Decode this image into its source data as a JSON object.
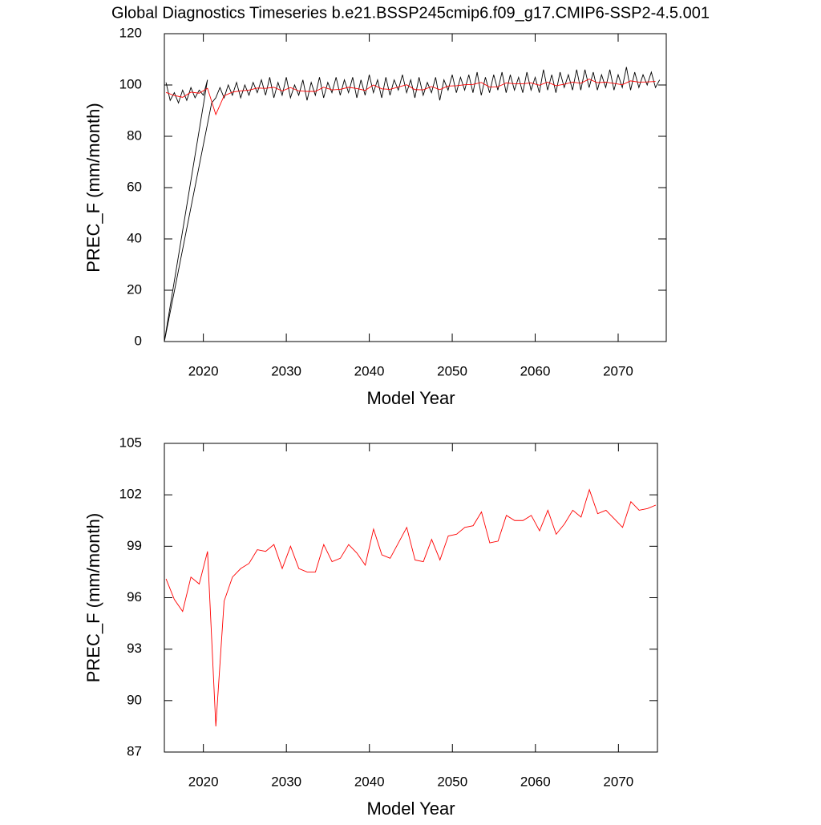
{
  "chart_data": [
    {
      "type": "line",
      "title": "Global Diagnostics Timeseries b.e21.BSSP245cmip6.f09_g17.CMIP6-SSP2-4.5.001",
      "x_label": "Model Year",
      "y_label": "PREC_F (mm/month)",
      "xlim": [
        2015.3,
        2075.8
      ],
      "ylim": [
        0,
        120
      ],
      "xticks": [
        2020,
        2030,
        2040,
        2050,
        2060,
        2070
      ],
      "yticks": [
        0,
        20,
        40,
        60,
        80,
        100,
        120
      ],
      "series": [
        {
          "color": "#000000",
          "x": [
            2015.5,
            2016,
            2016.5,
            2017,
            2017.5,
            2018,
            2018.5,
            2019,
            2019.5,
            2020,
            2020.5,
            2015.3,
            2021,
            2021.5,
            2022,
            2022.5,
            2023,
            2023.5,
            2024,
            2024.5,
            2025,
            2025.5,
            2026,
            2026.5,
            2027,
            2027.5,
            2028,
            2028.5,
            2029,
            2029.5,
            2030,
            2030.5,
            2031,
            2031.5,
            2032,
            2032.5,
            2033,
            2033.5,
            2034,
            2034.5,
            2035,
            2035.5,
            2036,
            2036.5,
            2037,
            2037.5,
            2038,
            2038.5,
            2039,
            2039.5,
            2040,
            2040.5,
            2041,
            2041.5,
            2042,
            2042.5,
            2043,
            2043.5,
            2044,
            2044.5,
            2045,
            2045.5,
            2046,
            2046.5,
            2047,
            2047.5,
            2048,
            2048.5,
            2049,
            2049.5,
            2050,
            2050.5,
            2051,
            2051.5,
            2052,
            2052.5,
            2053,
            2053.5,
            2054,
            2054.5,
            2055,
            2055.5,
            2056,
            2056.5,
            2057,
            2057.5,
            2058,
            2058.5,
            2059,
            2059.5,
            2060,
            2060.5,
            2061,
            2061.5,
            2062,
            2062.5,
            2063,
            2063.5,
            2064,
            2064.5,
            2065,
            2065.5,
            2066,
            2066.5,
            2067,
            2067.5,
            2068,
            2068.5,
            2069,
            2069.5,
            2070,
            2070.5,
            2071,
            2071.5,
            2072,
            2072.5,
            2073,
            2073.5,
            2074,
            2074.5,
            2075
          ],
          "values": [
            101,
            94,
            97,
            93,
            98,
            94,
            99,
            95,
            98,
            96,
            102,
            0,
            93,
            95,
            99,
            95,
            100,
            96,
            101,
            95,
            100,
            96,
            101,
            97,
            102,
            96,
            103,
            95,
            101,
            96,
            103,
            95,
            100,
            96,
            102,
            94,
            101,
            96,
            103,
            95,
            101,
            97,
            103,
            96,
            102,
            97,
            103,
            95,
            102,
            96,
            104,
            97,
            102,
            95,
            103,
            96,
            102,
            98,
            104,
            97,
            102,
            95,
            103,
            96,
            101,
            97,
            103,
            94,
            102,
            98,
            104,
            97,
            103,
            98,
            104,
            97,
            105,
            96,
            103,
            97,
            104,
            98,
            105,
            97,
            104,
            98,
            103,
            97,
            105,
            98,
            103,
            97,
            106,
            98,
            104,
            97,
            105,
            99,
            104,
            98,
            106,
            98,
            106,
            99,
            105,
            98,
            104,
            99,
            106,
            98,
            104,
            99,
            107,
            98,
            105,
            99,
            104,
            100,
            105,
            99,
            102
          ]
        },
        {
          "color": "#ff0000",
          "x": [
            2015.5,
            2016.5,
            2017.5,
            2018.5,
            2019.5,
            2020.5,
            2021.5,
            2022.5,
            2023.5,
            2024.5,
            2025.5,
            2026.5,
            2027.5,
            2028.5,
            2029.5,
            2030.5,
            2031.5,
            2032.5,
            2033.5,
            2034.5,
            2035.5,
            2036.5,
            2037.5,
            2038.5,
            2039.5,
            2040.5,
            2041.5,
            2042.5,
            2043.5,
            2044.5,
            2045.5,
            2046.5,
            2047.5,
            2048.5,
            2049.5,
            2050.5,
            2051.5,
            2052.5,
            2053.5,
            2054.5,
            2055.5,
            2056.5,
            2057.5,
            2058.5,
            2059.5,
            2060.5,
            2061.5,
            2062.5,
            2063.5,
            2064.5,
            2065.5,
            2066.5,
            2067.5,
            2068.5,
            2069.5,
            2070.5,
            2071.5,
            2072.5,
            2073.5,
            2074.5
          ],
          "values": [
            97.1,
            95.9,
            95.2,
            97.2,
            96.8,
            98.7,
            88.5,
            95.8,
            97.2,
            97.7,
            98.0,
            98.8,
            98.7,
            99.1,
            97.7,
            99.0,
            97.7,
            97.5,
            97.5,
            99.1,
            98.1,
            98.3,
            99.1,
            98.6,
            97.9,
            100.0,
            98.5,
            98.3,
            99.2,
            100.1,
            98.2,
            98.1,
            99.4,
            98.2,
            99.6,
            99.7,
            100.1,
            100.2,
            101.0,
            99.2,
            99.3,
            100.8,
            100.5,
            100.5,
            100.8,
            99.9,
            101.1,
            99.7,
            100.3,
            101.1,
            100.7,
            102.3,
            100.9,
            101.1,
            100.6,
            100.1,
            101.6,
            101.1,
            101.2,
            101.4
          ]
        }
      ]
    },
    {
      "type": "line",
      "x_label": "Model Year",
      "y_label": "PREC_F (mm/month)",
      "xlim": [
        2015.3,
        2074.7
      ],
      "ylim": [
        87,
        105
      ],
      "xticks": [
        2020,
        2030,
        2040,
        2050,
        2060,
        2070
      ],
      "yticks": [
        87,
        90,
        93,
        96,
        99,
        102,
        105
      ],
      "series": [
        {
          "color": "#ff0000",
          "x": [
            2015.5,
            2016.5,
            2017.5,
            2018.5,
            2019.5,
            2020.5,
            2021.5,
            2022.5,
            2023.5,
            2024.5,
            2025.5,
            2026.5,
            2027.5,
            2028.5,
            2029.5,
            2030.5,
            2031.5,
            2032.5,
            2033.5,
            2034.5,
            2035.5,
            2036.5,
            2037.5,
            2038.5,
            2039.5,
            2040.5,
            2041.5,
            2042.5,
            2043.5,
            2044.5,
            2045.5,
            2046.5,
            2047.5,
            2048.5,
            2049.5,
            2050.5,
            2051.5,
            2052.5,
            2053.5,
            2054.5,
            2055.5,
            2056.5,
            2057.5,
            2058.5,
            2059.5,
            2060.5,
            2061.5,
            2062.5,
            2063.5,
            2064.5,
            2065.5,
            2066.5,
            2067.5,
            2068.5,
            2069.5,
            2070.5,
            2071.5,
            2072.5,
            2073.5,
            2074.5
          ],
          "values": [
            97.1,
            95.9,
            95.2,
            97.2,
            96.8,
            98.7,
            88.5,
            95.8,
            97.2,
            97.7,
            98.0,
            98.8,
            98.7,
            99.1,
            97.7,
            99.0,
            97.7,
            97.5,
            97.5,
            99.1,
            98.1,
            98.3,
            99.1,
            98.6,
            97.9,
            100.0,
            98.5,
            98.3,
            99.2,
            100.1,
            98.2,
            98.1,
            99.4,
            98.2,
            99.6,
            99.7,
            100.1,
            100.2,
            101.0,
            99.2,
            99.3,
            100.8,
            100.5,
            100.5,
            100.8,
            99.9,
            101.1,
            99.7,
            100.3,
            101.1,
            100.7,
            102.3,
            100.9,
            101.1,
            100.6,
            100.1,
            101.6,
            101.1,
            101.2,
            101.4
          ]
        }
      ]
    }
  ]
}
